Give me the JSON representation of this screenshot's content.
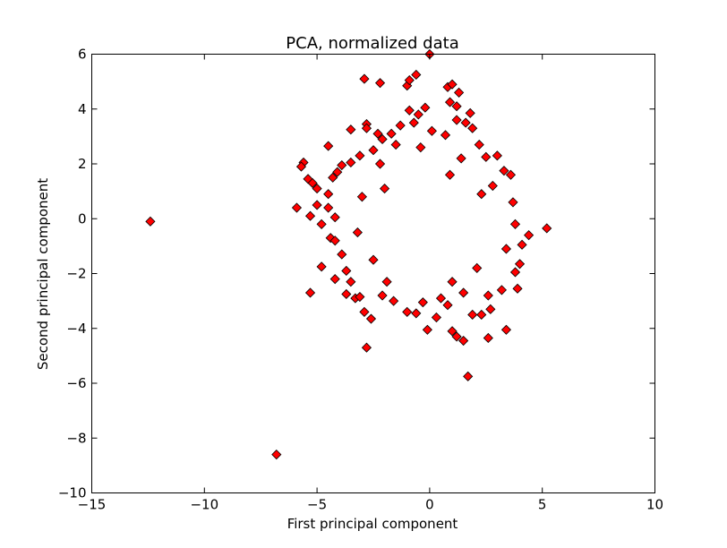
{
  "chart_data": {
    "type": "scatter",
    "title": "PCA, normalized data",
    "xlabel": "First principal component",
    "ylabel": "Second principal component",
    "xlim": [
      -15,
      10
    ],
    "ylim": [
      -10,
      6
    ],
    "x_ticks": [
      -15,
      -10,
      -5,
      0,
      5,
      10
    ],
    "y_ticks": [
      -10,
      -8,
      -6,
      -4,
      -2,
      0,
      2,
      4,
      6
    ],
    "x_tick_labels": [
      "−15",
      "−10",
      "−5",
      "0",
      "5",
      "10"
    ],
    "y_tick_labels": [
      "−10",
      "−8",
      "−6",
      "−4",
      "−2",
      "0",
      "2",
      "4",
      "6"
    ],
    "grid": false,
    "legend": "none",
    "marker": "diamond",
    "marker_color": "#ff0000",
    "marker_edge_color": "#000000",
    "series": [
      {
        "points": [
          [
            -12.4,
            -0.1
          ],
          [
            -6.8,
            -8.6
          ],
          [
            0.0,
            6.0
          ],
          [
            -2.9,
            5.1
          ],
          [
            -2.2,
            4.95
          ],
          [
            -0.6,
            5.25
          ],
          [
            -1.0,
            4.85
          ],
          [
            -0.9,
            5.05
          ],
          [
            0.8,
            4.8
          ],
          [
            1.0,
            4.9
          ],
          [
            1.3,
            4.6
          ],
          [
            0.9,
            4.25
          ],
          [
            1.2,
            4.1
          ],
          [
            1.8,
            3.85
          ],
          [
            -0.2,
            4.05
          ],
          [
            -0.9,
            3.95
          ],
          [
            -0.5,
            3.8
          ],
          [
            -2.8,
            3.45
          ],
          [
            -2.8,
            3.3
          ],
          [
            -3.5,
            3.25
          ],
          [
            -1.3,
            3.4
          ],
          [
            -4.5,
            2.65
          ],
          [
            -5.6,
            2.05
          ],
          [
            -5.7,
            1.9
          ],
          [
            -5.9,
            0.4
          ],
          [
            -5.4,
            1.45
          ],
          [
            -5.2,
            1.3
          ],
          [
            -5.0,
            1.1
          ],
          [
            -5.3,
            0.1
          ],
          [
            -5.0,
            0.5
          ],
          [
            -4.8,
            -0.2
          ],
          [
            -4.5,
            0.4
          ],
          [
            -4.4,
            -0.7
          ],
          [
            -4.2,
            -0.8
          ],
          [
            -4.8,
            -1.75
          ],
          [
            -5.3,
            -2.7
          ],
          [
            -4.2,
            -2.2
          ],
          [
            -3.7,
            -2.75
          ],
          [
            -3.3,
            -2.9
          ],
          [
            -3.1,
            -2.85
          ],
          [
            -2.9,
            -3.4
          ],
          [
            -2.6,
            -3.65
          ],
          [
            -2.8,
            -4.7
          ],
          [
            -1.0,
            -3.4
          ],
          [
            -0.6,
            -3.45
          ],
          [
            -0.1,
            -4.05
          ],
          [
            0.3,
            -3.6
          ],
          [
            0.8,
            -3.15
          ],
          [
            1.0,
            -4.1
          ],
          [
            1.2,
            -4.3
          ],
          [
            1.5,
            -4.45
          ],
          [
            1.7,
            -5.75
          ],
          [
            2.6,
            -4.35
          ],
          [
            3.4,
            -4.05
          ],
          [
            2.7,
            -3.3
          ],
          [
            2.3,
            -3.5
          ],
          [
            1.9,
            -3.5
          ],
          [
            4.4,
            -0.6
          ],
          [
            5.2,
            -0.35
          ],
          [
            4.1,
            -0.95
          ],
          [
            4.0,
            -1.65
          ],
          [
            3.9,
            -2.55
          ],
          [
            3.8,
            -0.2
          ],
          [
            3.7,
            0.6
          ],
          [
            3.6,
            1.6
          ],
          [
            3.3,
            1.75
          ],
          [
            3.0,
            2.3
          ],
          [
            2.5,
            2.25
          ],
          [
            2.2,
            2.7
          ],
          [
            1.9,
            3.3
          ],
          [
            1.6,
            3.5
          ],
          [
            1.2,
            3.6
          ],
          [
            -0.7,
            3.5
          ],
          [
            -1.7,
            3.1
          ],
          [
            -2.1,
            2.9
          ],
          [
            -2.3,
            3.1
          ],
          [
            -2.5,
            2.5
          ],
          [
            -3.1,
            2.3
          ],
          [
            -3.5,
            2.05
          ],
          [
            -3.9,
            1.95
          ],
          [
            -4.1,
            1.7
          ],
          [
            -4.3,
            1.5
          ],
          [
            -4.5,
            0.9
          ],
          [
            -4.2,
            0.05
          ],
          [
            -3.9,
            -1.3
          ],
          [
            -3.7,
            -1.9
          ],
          [
            -3.5,
            -2.3
          ],
          [
            -2.1,
            -2.8
          ],
          [
            -1.6,
            -3.0
          ],
          [
            -0.3,
            -3.05
          ],
          [
            0.5,
            -2.9
          ],
          [
            1.5,
            -2.7
          ],
          [
            2.6,
            -2.8
          ],
          [
            3.2,
            -2.6
          ],
          [
            3.8,
            -1.95
          ],
          [
            -2.2,
            2.0
          ],
          [
            -1.5,
            2.7
          ],
          [
            0.1,
            3.2
          ],
          [
            0.7,
            3.05
          ],
          [
            2.8,
            1.2
          ],
          [
            3.4,
            -1.1
          ],
          [
            -1.9,
            -2.3
          ],
          [
            1.0,
            -2.3
          ],
          [
            -3.0,
            0.8
          ],
          [
            -2.5,
            -1.5
          ],
          [
            2.1,
            -1.8
          ],
          [
            -0.4,
            2.6
          ],
          [
            1.4,
            2.2
          ],
          [
            -3.2,
            -0.5
          ],
          [
            -2.0,
            1.1
          ],
          [
            0.9,
            1.6
          ],
          [
            2.3,
            0.9
          ]
        ]
      }
    ]
  }
}
